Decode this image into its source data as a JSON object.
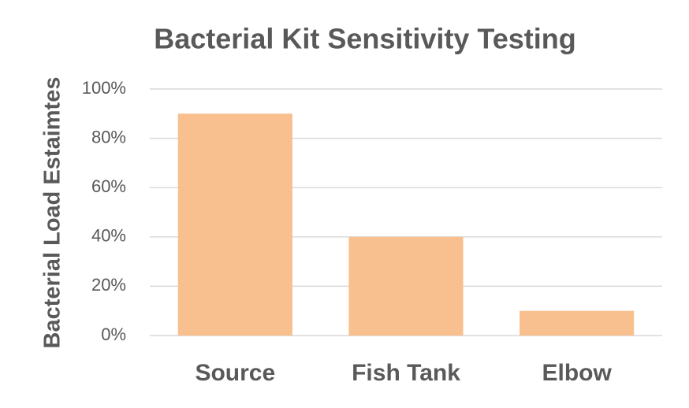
{
  "chart_data": {
    "type": "bar",
    "title": "Bacterial Kit Sensitivity Testing",
    "y_label": "Bacterial Load Estaimtes",
    "categories": [
      "Source",
      "Fish Tank",
      "Elbow"
    ],
    "values": [
      90,
      40,
      10
    ],
    "color": "#f8c08f",
    "ylim": [
      0,
      100
    ],
    "yticks": [
      {
        "value": 0,
        "label": "0%"
      },
      {
        "value": 20,
        "label": "20%"
      },
      {
        "value": 40,
        "label": "40%"
      },
      {
        "value": 60,
        "label": "60%"
      },
      {
        "value": 80,
        "label": "80%"
      },
      {
        "value": 100,
        "label": "100%"
      }
    ],
    "grid": true
  }
}
